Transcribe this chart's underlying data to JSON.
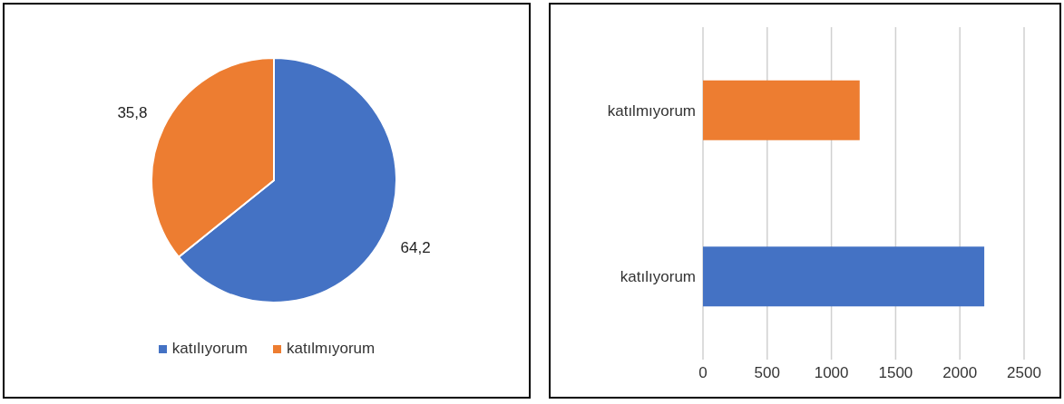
{
  "chart_data": [
    {
      "type": "pie",
      "categories": [
        "katılıyorum",
        "katılmıyorum"
      ],
      "values": [
        64.2,
        35.8
      ],
      "colors": [
        "#4472c4",
        "#ed7d31"
      ],
      "value_labels": [
        "64,2",
        "35,8"
      ],
      "legend": "bottom"
    },
    {
      "type": "bar",
      "orientation": "horizontal",
      "categories": [
        "katılmıyorum",
        "katılıyorum"
      ],
      "values": [
        1220,
        2190
      ],
      "colors": [
        "#ed7d31",
        "#4472c4"
      ],
      "xlim": [
        0,
        2500
      ],
      "xticks": [
        0,
        500,
        1000,
        1500,
        2000,
        2500
      ],
      "grid": "x"
    }
  ]
}
